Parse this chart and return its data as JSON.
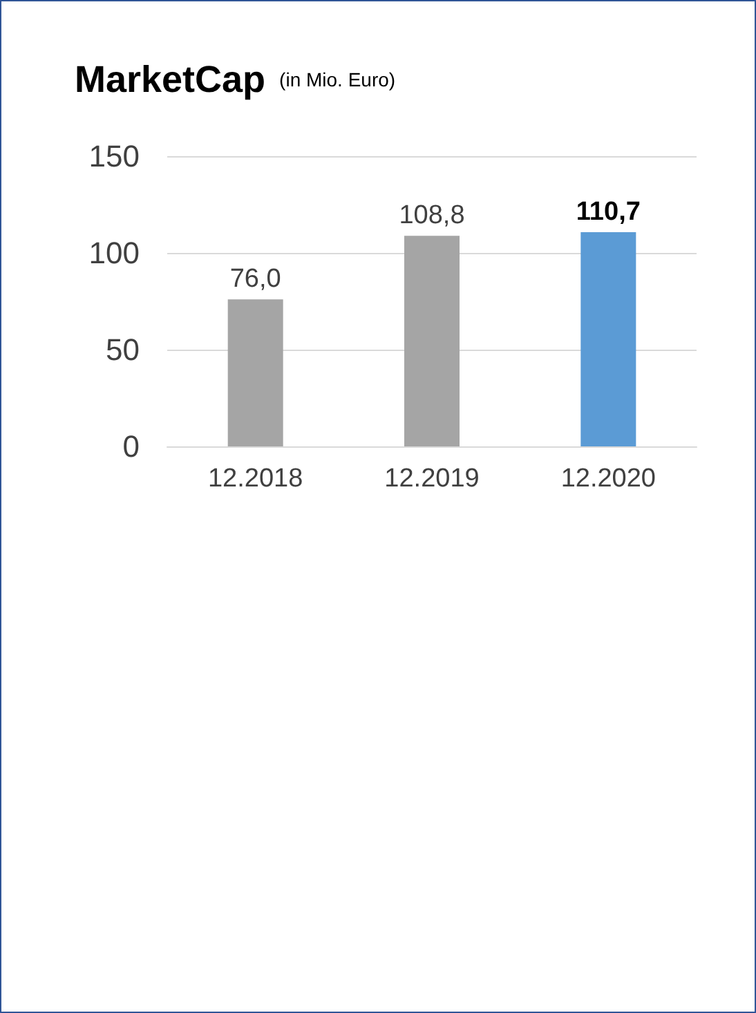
{
  "chart_data": {
    "type": "bar",
    "title": "MarketCap",
    "subtitle": "(in Mio. Euro)",
    "categories": [
      "12.2018",
      "12.2019",
      "12.2020"
    ],
    "values": [
      76.0,
      108.8,
      110.7
    ],
    "colors": [
      "#a5a5a5",
      "#a5a5a5",
      "#5b9bd5"
    ],
    "value_labels": [
      "76,0",
      "108,8",
      "110,7"
    ],
    "ylim": [
      0,
      150
    ],
    "yticks": [
      0,
      50,
      100,
      150
    ],
    "grid": "y"
  }
}
